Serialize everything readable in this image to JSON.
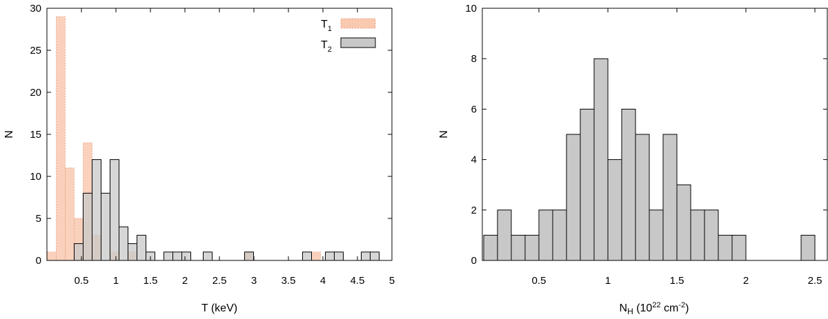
{
  "chart_data": [
    {
      "type": "bar",
      "xlabel": "T (keV)",
      "ylabel": "N",
      "xlim": [
        0.0,
        5.0
      ],
      "ylim": [
        0,
        30
      ],
      "xticks": [
        "0.5",
        "1",
        "1.5",
        "2",
        "2.5",
        "3",
        "3.5",
        "4",
        "4.5",
        "5"
      ],
      "yticks": [
        "0",
        "5",
        "10",
        "15",
        "20",
        "25",
        "30"
      ],
      "bin_width": 0.13,
      "legend_position": "top-right",
      "series": [
        {
          "name_main": "T",
          "name_sub": "1",
          "color": "#f9c9b0",
          "border": "#e9a98a",
          "bins": [
            {
              "x": 0.07,
              "y": 1
            },
            {
              "x": 0.2,
              "y": 29
            },
            {
              "x": 0.33,
              "y": 11
            },
            {
              "x": 0.46,
              "y": 5
            },
            {
              "x": 0.59,
              "y": 14
            },
            {
              "x": 0.72,
              "y": 3
            },
            {
              "x": 0.98,
              "y": 1
            },
            {
              "x": 1.24,
              "y": 1
            },
            {
              "x": 2.93,
              "y": 1
            },
            {
              "x": 3.9,
              "y": 1
            }
          ]
        },
        {
          "name_main": "T",
          "name_sub": "2",
          "color": "#c8c8c8",
          "border": "#000000",
          "bins": [
            {
              "x": 0.46,
              "y": 2
            },
            {
              "x": 0.59,
              "y": 8
            },
            {
              "x": 0.72,
              "y": 12
            },
            {
              "x": 0.85,
              "y": 8
            },
            {
              "x": 0.98,
              "y": 12
            },
            {
              "x": 1.11,
              "y": 4
            },
            {
              "x": 1.24,
              "y": 2
            },
            {
              "x": 1.37,
              "y": 3
            },
            {
              "x": 1.5,
              "y": 1
            },
            {
              "x": 1.76,
              "y": 1
            },
            {
              "x": 1.89,
              "y": 1
            },
            {
              "x": 2.02,
              "y": 1
            },
            {
              "x": 2.33,
              "y": 1
            },
            {
              "x": 2.93,
              "y": 1
            },
            {
              "x": 3.77,
              "y": 1
            },
            {
              "x": 4.1,
              "y": 1
            },
            {
              "x": 4.23,
              "y": 1
            },
            {
              "x": 4.62,
              "y": 1
            },
            {
              "x": 4.75,
              "y": 1
            }
          ]
        }
      ]
    },
    {
      "type": "bar",
      "xlabel_main": "N",
      "xlabel_sub": "H",
      "xlabel_rest": " (10",
      "xlabel_sup": "22",
      "xlabel_unit": " cm",
      "xlabel_unit_sup": "-2",
      "xlabel_end": ")",
      "ylabel": "N",
      "xlim": [
        0.09,
        2.59
      ],
      "ylim": [
        0,
        10
      ],
      "xticks": [
        "0.5",
        "1",
        "1.5",
        "2",
        "2.5"
      ],
      "yticks": [
        "0",
        "2",
        "4",
        "6",
        "8",
        "10"
      ],
      "bin_width": 0.1,
      "series": [
        {
          "color": "#c8c8c8",
          "border": "#000000",
          "bins": [
            {
              "x": 0.15,
              "y": 1
            },
            {
              "x": 0.25,
              "y": 2
            },
            {
              "x": 0.35,
              "y": 1
            },
            {
              "x": 0.45,
              "y": 1
            },
            {
              "x": 0.55,
              "y": 2
            },
            {
              "x": 0.65,
              "y": 2
            },
            {
              "x": 0.75,
              "y": 5
            },
            {
              "x": 0.85,
              "y": 6
            },
            {
              "x": 0.95,
              "y": 8
            },
            {
              "x": 1.05,
              "y": 4
            },
            {
              "x": 1.15,
              "y": 6
            },
            {
              "x": 1.25,
              "y": 5
            },
            {
              "x": 1.35,
              "y": 2
            },
            {
              "x": 1.45,
              "y": 5
            },
            {
              "x": 1.55,
              "y": 3
            },
            {
              "x": 1.65,
              "y": 2
            },
            {
              "x": 1.75,
              "y": 2
            },
            {
              "x": 1.85,
              "y": 1
            },
            {
              "x": 1.95,
              "y": 1
            },
            {
              "x": 2.45,
              "y": 1
            }
          ]
        }
      ]
    }
  ]
}
